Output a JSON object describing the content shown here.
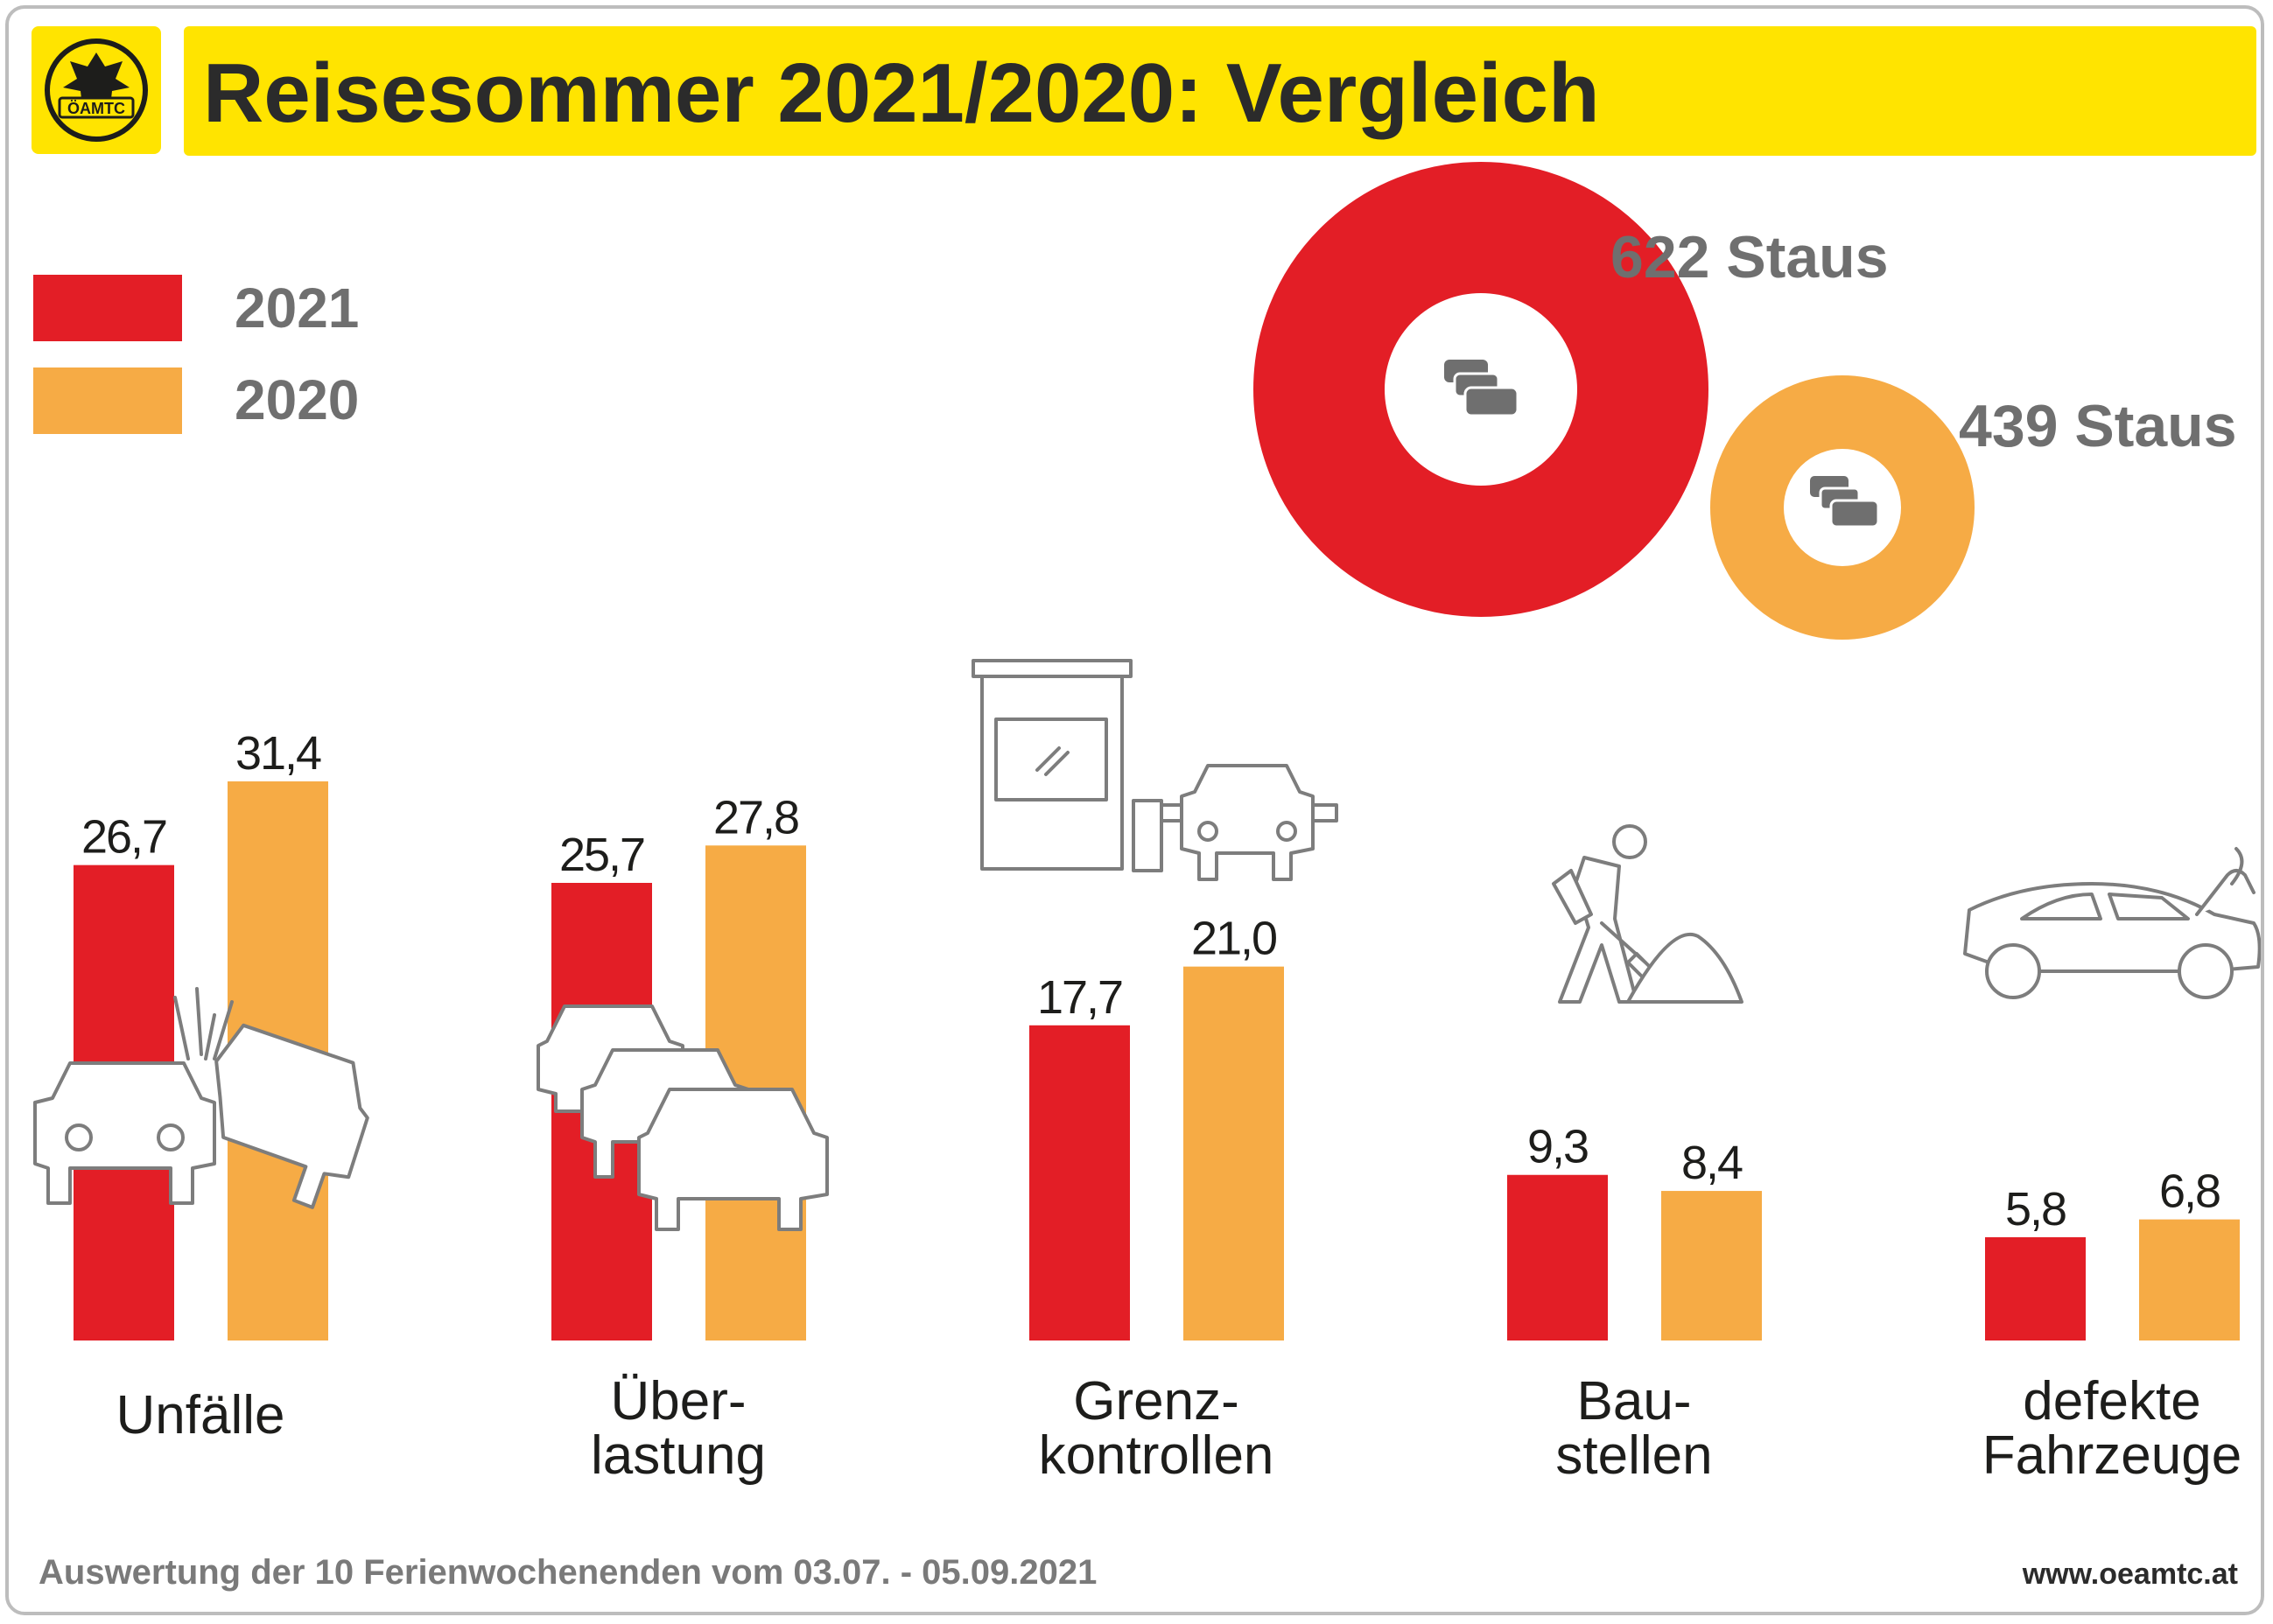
{
  "title": "Reisesommer 2021/2020: Vergleich",
  "logo_text": "ÖAMTC",
  "legend": [
    {
      "label": "2021",
      "color": "#e31e26"
    },
    {
      "label": "2020",
      "color": "#f6ab45"
    }
  ],
  "congestion": {
    "y2021": {
      "count": 622,
      "label": "622 Staus",
      "color": "#e31e26"
    },
    "y2020": {
      "count": 439,
      "label": "439 Staus",
      "color": "#f6ab45"
    }
  },
  "chart_data": {
    "type": "bar",
    "title": "Reisesommer 2021/2020: Vergleich",
    "xlabel": "",
    "ylabel": "",
    "ylim": [
      0,
      35
    ],
    "grid": false,
    "legend_position": "top-left",
    "categories": [
      [
        "Unfälle"
      ],
      [
        "Über-",
        "lastung"
      ],
      [
        "Grenz-",
        "kontrollen"
      ],
      [
        "Bau-",
        "stellen"
      ],
      [
        "defekte",
        "Fahrzeuge"
      ]
    ],
    "series": [
      {
        "name": "2021",
        "color": "#e31e26",
        "values": [
          26.7,
          25.7,
          17.7,
          9.3,
          5.8
        ],
        "labels": [
          "26,7",
          "25,7",
          "17,7",
          "9,3",
          "5,8"
        ]
      },
      {
        "name": "2020",
        "color": "#f6ab45",
        "values": [
          31.4,
          27.8,
          21.0,
          8.4,
          6.8
        ],
        "labels": [
          "31,4",
          "27,8",
          "21,0",
          "8,4",
          "6,8"
        ]
      }
    ]
  },
  "footer": {
    "note": "Auswertung der 10 Ferienwochenenden vom 03.07. - 05.09.2021",
    "url": "www.oeamtc.at"
  }
}
